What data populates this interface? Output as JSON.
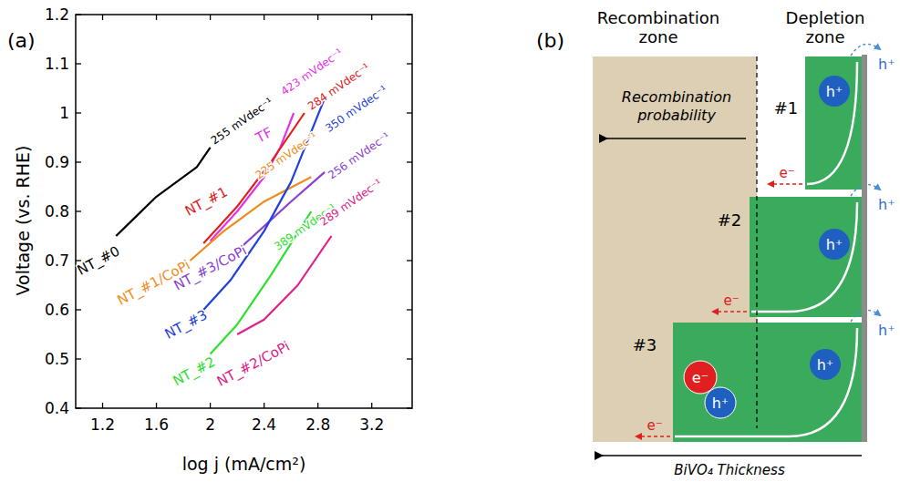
{
  "chart_data": {
    "type": "line",
    "panel": "(a)",
    "x_label": "log j (mA/cm²)",
    "y_label": "Voltage (vs. RHE)",
    "xlim": [
      1.0,
      3.5
    ],
    "ylim": [
      0.4,
      1.2
    ],
    "xticks": [
      1.2,
      1.6,
      2,
      2.4,
      2.8,
      3.2
    ],
    "yticks": [
      0.4,
      0.5,
      0.6,
      0.7,
      0.8,
      0.9,
      1,
      1.1,
      1.2
    ],
    "series": [
      {
        "name": "NT_#0",
        "color": "#000000",
        "x": [
          1.3,
          1.45,
          1.6,
          1.75,
          1.9,
          2.0
        ],
        "values": [
          0.75,
          0.79,
          0.83,
          0.86,
          0.89,
          0.93
        ],
        "name_at": {
          "x": 1.17,
          "y": 0.7
        },
        "slope": "255 mVdec⁻¹",
        "slope_at": {
          "x": 2.03,
          "y": 0.935
        }
      },
      {
        "name": "TF",
        "color": "#e632e6",
        "x": [
          2.0,
          2.2,
          2.4,
          2.52,
          2.62
        ],
        "values": [
          0.74,
          0.8,
          0.87,
          0.93,
          1.0
        ],
        "name_at": {
          "x": 2.4,
          "y": 0.955
        },
        "slope": "423 mVdec⁻¹",
        "slope_at": {
          "x": 2.55,
          "y": 1.035
        }
      },
      {
        "name": "NT_#1",
        "color": "#e0201c",
        "x": [
          1.95,
          2.2,
          2.45,
          2.7
        ],
        "values": [
          0.735,
          0.81,
          0.9,
          1.0
        ],
        "name_at": {
          "x": 1.97,
          "y": 0.82
        },
        "slope": "284 mVdec⁻¹",
        "slope_at": {
          "x": 2.75,
          "y": 1.005
        }
      },
      {
        "name": "NT_#1/CoPi",
        "color": "#f08c1e",
        "x": [
          1.85,
          2.1,
          2.4,
          2.75
        ],
        "values": [
          0.7,
          0.76,
          0.82,
          0.87
        ],
        "name_at": {
          "x": 1.58,
          "y": 0.655
        },
        "slope": "225 mVdec⁻¹",
        "slope_at": {
          "x": 2.36,
          "y": 0.865
        }
      },
      {
        "name": "NT_#3/CoPi",
        "color": "#8a3fd1",
        "x": [
          2.2,
          2.4,
          2.6,
          2.85
        ],
        "values": [
          0.72,
          0.77,
          0.82,
          0.88
        ],
        "name_at": {
          "x": 2.0,
          "y": 0.685
        },
        "slope": "256 mVdec⁻¹",
        "slope_at": {
          "x": 2.9,
          "y": 0.865
        }
      },
      {
        "name": "NT_#3",
        "color": "#1f3fe0",
        "x": [
          1.95,
          2.15,
          2.4,
          2.6,
          2.85
        ],
        "values": [
          0.6,
          0.66,
          0.76,
          0.86,
          1.03
        ],
        "name_at": {
          "x": 1.82,
          "y": 0.57
        },
        "slope": "350 mVdec⁻¹",
        "slope_at": {
          "x": 2.88,
          "y": 0.96
        }
      },
      {
        "name": "NT_#2",
        "color": "#2ee02e",
        "x": [
          2.0,
          2.2,
          2.45,
          2.75
        ],
        "values": [
          0.51,
          0.57,
          0.67,
          0.8
        ],
        "name_at": {
          "x": 1.88,
          "y": 0.475
        },
        "slope": "389 mVdec⁻¹",
        "slope_at": {
          "x": 2.5,
          "y": 0.72
        }
      },
      {
        "name": "NT_#2/CoPi",
        "color": "#e0208a",
        "x": [
          2.2,
          2.4,
          2.65,
          2.9
        ],
        "values": [
          0.55,
          0.58,
          0.65,
          0.75
        ],
        "name_at": {
          "x": 2.32,
          "y": 0.49
        },
        "slope": "289 mVdec⁻¹",
        "slope_at": {
          "x": 2.84,
          "y": 0.77
        }
      }
    ]
  },
  "diagram": {
    "panel": "(b)",
    "zones": [
      "Recombination zone",
      "Depletion zone"
    ],
    "arrow_labels": [
      "Recombination probability",
      "BiVO₄ Thickness"
    ],
    "samples": [
      "#1",
      "#2",
      "#3"
    ],
    "hole": "h⁺",
    "electron": "e⁻"
  }
}
